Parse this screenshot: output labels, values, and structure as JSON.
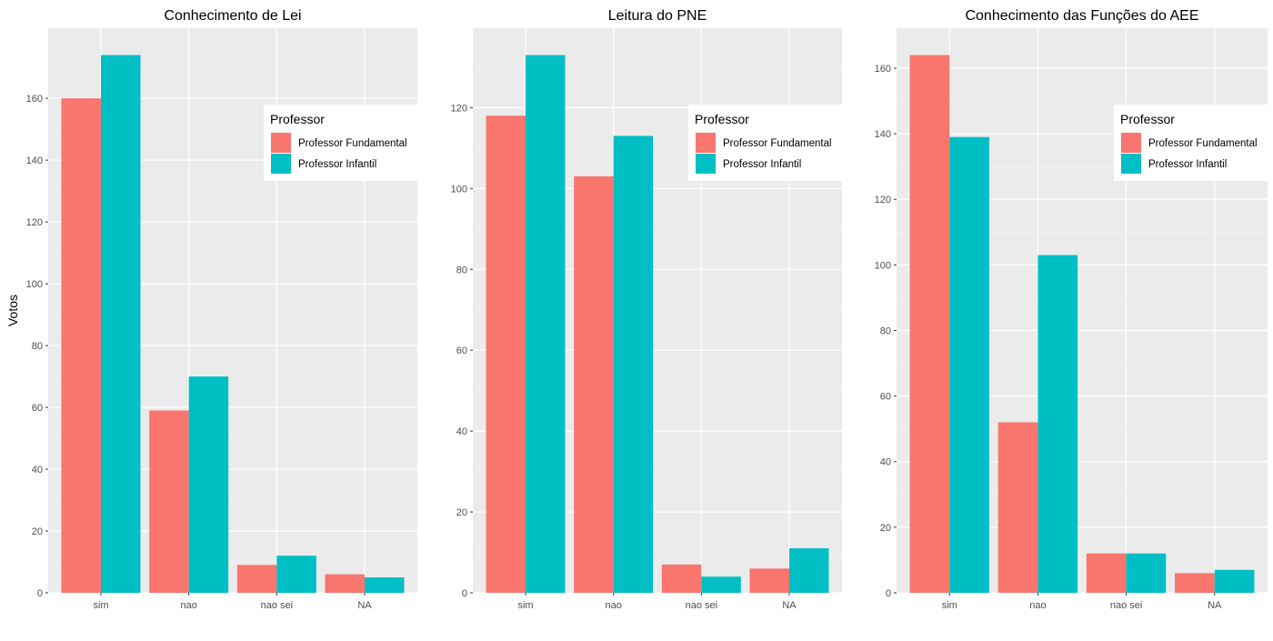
{
  "colors": {
    "panel_background": "#EBEBEB",
    "grid_major": "#FFFFFF",
    "grid_minor": "#F5F5F5",
    "tick_text": "#4D4D4D",
    "title_text": "#000000"
  },
  "ylabel": "Votos",
  "legend": {
    "title": "Professor",
    "placement": "top-right, inside panel",
    "entries": [
      {
        "label": "Professor Fundamental",
        "color": "#F8766D"
      },
      {
        "label": "Professor Infantil",
        "color": "#00BFC4"
      }
    ]
  },
  "chart_data": [
    {
      "type": "bar",
      "title": "Conhecimento de Lei",
      "ylabel": "Votos",
      "categories": [
        "sim",
        "nao",
        "nao sei",
        "NA"
      ],
      "series": [
        {
          "name": "Professor Fundamental",
          "values": [
            160,
            59,
            9,
            6
          ]
        },
        {
          "name": "Professor Infantil",
          "values": [
            174,
            70,
            12,
            5
          ]
        }
      ],
      "ylim": [
        0,
        174
      ],
      "yticks": [
        0,
        20,
        40,
        60,
        80,
        100,
        120,
        140,
        160
      ],
      "grid": true
    },
    {
      "type": "bar",
      "title": "Leitura do PNE",
      "ylabel": "",
      "categories": [
        "sim",
        "nao",
        "nao sei",
        "NA"
      ],
      "series": [
        {
          "name": "Professor Fundamental",
          "values": [
            118,
            103,
            7,
            6
          ]
        },
        {
          "name": "Professor Infantil",
          "values": [
            133,
            113,
            4,
            11
          ]
        }
      ],
      "ylim": [
        0,
        133
      ],
      "yticks": [
        0,
        20,
        40,
        60,
        80,
        100,
        120
      ],
      "grid": true
    },
    {
      "type": "bar",
      "title": "Conhecimento das Funções do AEE",
      "ylabel": "",
      "categories": [
        "sim",
        "nao",
        "nao sei",
        "NA"
      ],
      "series": [
        {
          "name": "Professor Fundamental",
          "values": [
            164,
            52,
            12,
            6
          ]
        },
        {
          "name": "Professor Infantil",
          "values": [
            139,
            103,
            12,
            7
          ]
        }
      ],
      "ylim": [
        0,
        164
      ],
      "yticks": [
        0,
        20,
        40,
        60,
        80,
        100,
        120,
        140,
        160
      ],
      "grid": true
    }
  ]
}
